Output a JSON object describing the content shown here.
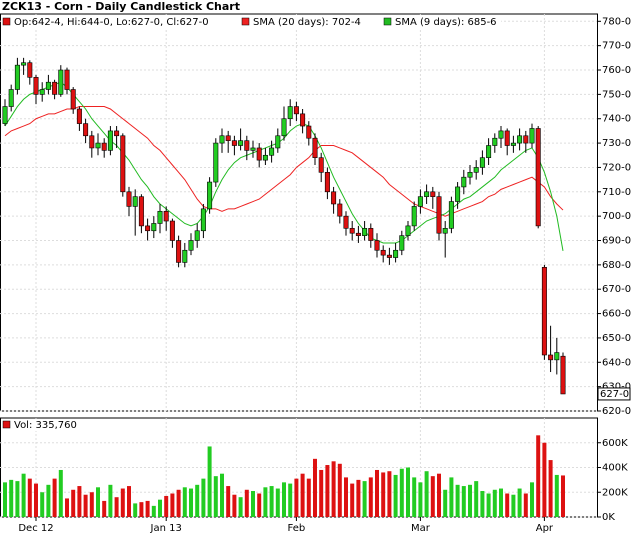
{
  "chart_data": [
    {
      "type": "candlestick",
      "title": "ZCK13 - Corn - Daily Candlestick Chart",
      "ohlc_label": "Op:642-4, Hi:644-0, Lo:627-0, Cl:627-0",
      "up_color": "#22cc22",
      "down_color": "#dd1111",
      "ylim": [
        620,
        783
      ],
      "yticks": [
        {
          "value": 620,
          "label": "620-0"
        },
        {
          "value": 630,
          "label": "630-0"
        },
        {
          "value": 640,
          "label": "640-0"
        },
        {
          "value": 650,
          "label": "650-0"
        },
        {
          "value": 660,
          "label": "660-0"
        },
        {
          "value": 670,
          "label": "670-0"
        },
        {
          "value": 680,
          "label": "680-0"
        },
        {
          "value": 690,
          "label": "690-0"
        },
        {
          "value": 700,
          "label": "700-0"
        },
        {
          "value": 710,
          "label": "710-0"
        },
        {
          "value": 720,
          "label": "720-0"
        },
        {
          "value": 730,
          "label": "730-0"
        },
        {
          "value": 740,
          "label": "740-0"
        },
        {
          "value": 750,
          "label": "750-0"
        },
        {
          "value": 760,
          "label": "760-0"
        },
        {
          "value": 770,
          "label": "770-0"
        },
        {
          "value": 780,
          "label": "780-0"
        }
      ],
      "current_price": {
        "value": 627,
        "label": "627-0"
      },
      "xticks": [
        {
          "value": 5,
          "label": "Dec 12"
        },
        {
          "value": 26,
          "label": "Jan 13"
        },
        {
          "value": 47,
          "label": "Feb"
        },
        {
          "value": 67,
          "label": "Mar"
        },
        {
          "value": 87,
          "label": "Apr"
        }
      ],
      "grid": true,
      "open": [
        738,
        745,
        752,
        762,
        763,
        757,
        750,
        752,
        755,
        750,
        760,
        752,
        744,
        738,
        733,
        728,
        730,
        727,
        735,
        733,
        710,
        704,
        708,
        696,
        694,
        697,
        702,
        698,
        690,
        681,
        686,
        690,
        694,
        703,
        714,
        730,
        733,
        731,
        729,
        731,
        727,
        728,
        723,
        725,
        728,
        733,
        740,
        745,
        742,
        737,
        732,
        724,
        718,
        710,
        705,
        700,
        695,
        693,
        692,
        695,
        690,
        686,
        684,
        683,
        686,
        692,
        696,
        704,
        708,
        710,
        708,
        693,
        695,
        706,
        712,
        716,
        718,
        720,
        724,
        729,
        732,
        735,
        729,
        730,
        733,
        730,
        736,
        679,
        643,
        641,
        642.5
      ],
      "high": [
        748,
        754,
        765,
        765,
        764,
        758,
        755,
        758,
        756,
        762,
        761,
        753,
        745,
        740,
        735,
        734,
        732,
        737,
        737,
        734,
        712,
        711,
        709,
        699,
        700,
        705,
        704,
        699,
        692,
        689,
        693,
        697,
        705,
        716,
        732,
        736,
        735,
        733,
        736,
        733,
        731,
        730,
        728,
        731,
        736,
        745,
        748,
        747,
        744,
        739,
        734,
        726,
        720,
        712,
        707,
        702,
        698,
        696,
        698,
        697,
        693,
        688,
        687,
        689,
        694,
        698,
        706,
        711,
        713,
        712,
        710,
        698,
        708,
        714,
        719,
        721,
        723,
        727,
        732,
        734,
        737,
        736,
        733,
        736,
        735,
        738,
        737,
        680,
        655,
        650,
        644
      ],
      "low": [
        737,
        743,
        750,
        758,
        754,
        746,
        747,
        750,
        748,
        749,
        750,
        742,
        735,
        730,
        724,
        725,
        724,
        725,
        728,
        708,
        700,
        692,
        693,
        690,
        691,
        693,
        694,
        687,
        679,
        679,
        684,
        687,
        691,
        701,
        712,
        726,
        726,
        725,
        727,
        723,
        724,
        720,
        721,
        722,
        726,
        731,
        737,
        739,
        734,
        729,
        721,
        714,
        707,
        701,
        697,
        692,
        690,
        689,
        690,
        687,
        683,
        681,
        680,
        681,
        684,
        690,
        694,
        701,
        705,
        703,
        690,
        683,
        693,
        703,
        709,
        713,
        715,
        717,
        721,
        726,
        728,
        725,
        726,
        727,
        726,
        728,
        695,
        641,
        636,
        635,
        627
      ],
      "close": [
        745,
        752,
        762,
        763,
        757,
        750,
        752,
        755,
        750,
        760,
        752,
        744,
        738,
        733,
        728,
        730,
        727,
        735,
        733,
        710,
        704,
        708,
        696,
        694,
        697,
        702,
        698,
        690,
        681,
        686,
        690,
        694,
        703,
        714,
        730,
        733,
        731,
        729,
        731,
        727,
        728,
        723,
        725,
        728,
        733,
        740,
        745,
        742,
        737,
        732,
        724,
        718,
        710,
        705,
        700,
        695,
        693,
        692,
        695,
        690,
        686,
        684,
        683,
        686,
        692,
        696,
        704,
        708,
        710,
        708,
        693,
        695,
        706,
        712,
        716,
        718,
        720,
        724,
        729,
        732,
        735,
        729,
        730,
        733,
        730,
        736,
        696,
        643,
        641,
        644,
        627
      ],
      "series": [
        {
          "name": "SMA (20 days): 702-4",
          "color": "#ee2222",
          "values": [
            733,
            735,
            736,
            737,
            738,
            740,
            741,
            742,
            742,
            743,
            744,
            744,
            745,
            745,
            745,
            745,
            745,
            744,
            742,
            740,
            738,
            736,
            734,
            732,
            729,
            727,
            724,
            721,
            718,
            715,
            711,
            707,
            704,
            703,
            703,
            702,
            703,
            703,
            704,
            705,
            706,
            707,
            709,
            711,
            713,
            715,
            717,
            720,
            722,
            724,
            727,
            729,
            729,
            729,
            728,
            727,
            726,
            724,
            722,
            720,
            718,
            716,
            713,
            711,
            709,
            707,
            705,
            704,
            703,
            702,
            701,
            700,
            701,
            702,
            703,
            704,
            705,
            706,
            708,
            709,
            711,
            712,
            713,
            714,
            715,
            716,
            714,
            712,
            708,
            705,
            702.5
          ]
        },
        {
          "name": "SMA (9 days): 685-6",
          "color": "#22bb22",
          "values": [
            737,
            741,
            745,
            748,
            750,
            751,
            752,
            753,
            754,
            755,
            753,
            750,
            747,
            744,
            740,
            737,
            734,
            731,
            729,
            726,
            723,
            719,
            715,
            712,
            708,
            705,
            703,
            701,
            699,
            697,
            696,
            697,
            700,
            704,
            710,
            715,
            719,
            722,
            724,
            725,
            726,
            727,
            728,
            729,
            730,
            732,
            735,
            737,
            738,
            737,
            733,
            728,
            722,
            716,
            711,
            706,
            701,
            697,
            694,
            691,
            690,
            689,
            689,
            689,
            690,
            692,
            694,
            696,
            698,
            699,
            700,
            701,
            703,
            705,
            707,
            708,
            710,
            712,
            714,
            716,
            719,
            721,
            723,
            725,
            727,
            728,
            724,
            718,
            710,
            700,
            685.75
          ]
        }
      ]
    },
    {
      "type": "bar",
      "legend": "Vol: 335,760",
      "ylim": [
        0,
        800000
      ],
      "yticks": [
        {
          "value": 0,
          "label": "0K"
        },
        {
          "value": 200000,
          "label": "200K"
        },
        {
          "value": 400000,
          "label": "400K"
        },
        {
          "value": 600000,
          "label": "600K"
        }
      ],
      "values": [
        280000,
        300000,
        290000,
        350000,
        310000,
        270000,
        200000,
        260000,
        310000,
        380000,
        150000,
        220000,
        250000,
        180000,
        200000,
        240000,
        130000,
        260000,
        160000,
        230000,
        250000,
        110000,
        120000,
        130000,
        90000,
        140000,
        170000,
        190000,
        220000,
        240000,
        230000,
        260000,
        310000,
        570000,
        330000,
        350000,
        250000,
        180000,
        160000,
        220000,
        210000,
        190000,
        240000,
        250000,
        230000,
        280000,
        270000,
        310000,
        350000,
        310000,
        470000,
        380000,
        420000,
        450000,
        430000,
        320000,
        270000,
        300000,
        290000,
        320000,
        380000,
        360000,
        370000,
        340000,
        390000,
        400000,
        320000,
        280000,
        370000,
        330000,
        350000,
        220000,
        320000,
        260000,
        250000,
        260000,
        290000,
        210000,
        190000,
        220000,
        230000,
        190000,
        180000,
        230000,
        190000,
        280000,
        660000,
        600000,
        460000,
        340000,
        335760
      ]
    }
  ]
}
